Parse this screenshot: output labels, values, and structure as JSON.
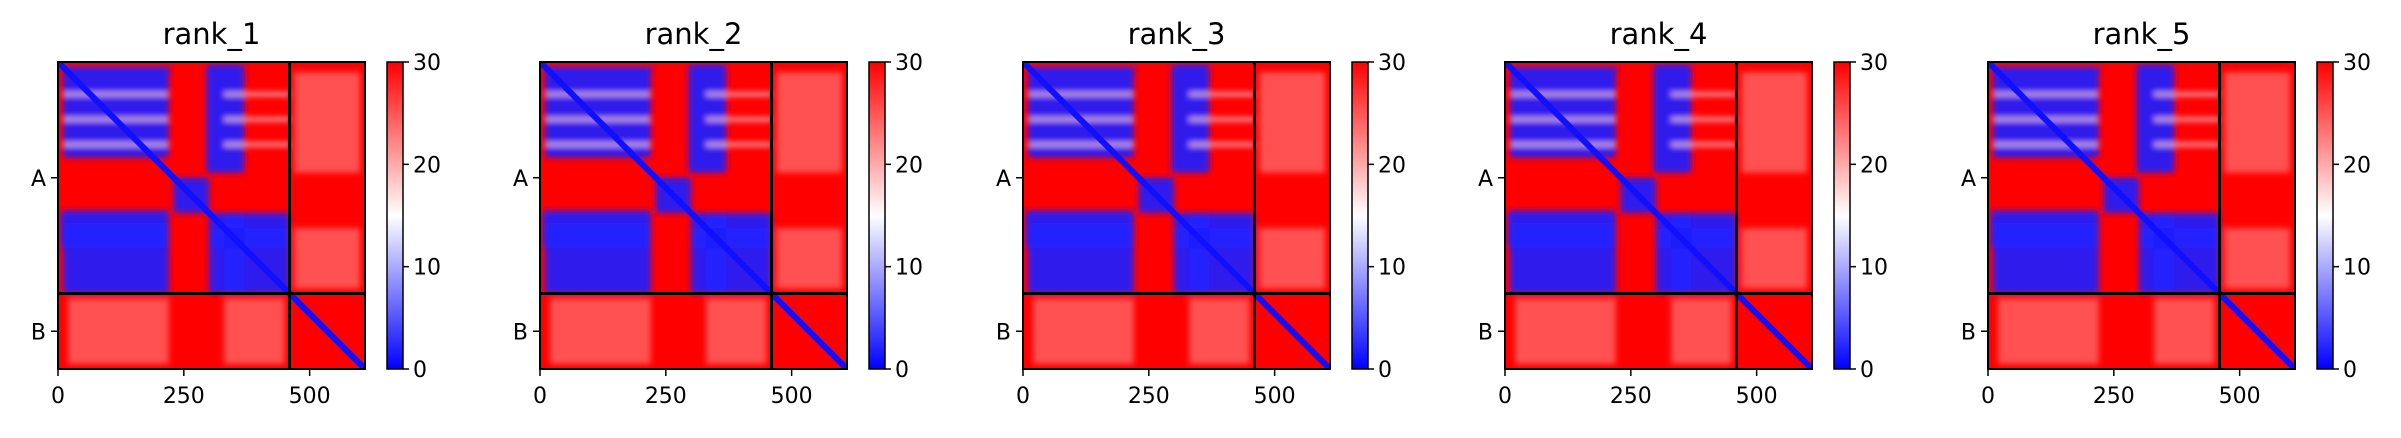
{
  "chart_data": [
    {
      "type": "heatmap",
      "title": "rank_1",
      "colormap": [
        "#0000ff",
        "#ffffff",
        "#ff0000"
      ],
      "chain_tick_labels": [
        "A",
        "B"
      ],
      "chain_boundaries": [
        460
      ],
      "xtick_labels": [
        "0",
        "250",
        "500"
      ],
      "xticks": [
        0,
        250,
        500
      ],
      "xlim": [
        0,
        610
      ],
      "colorbar": {
        "ticks": [
          "0",
          "10",
          "20",
          "30"
        ],
        "range": [
          0,
          30
        ]
      }
    },
    {
      "type": "heatmap",
      "title": "rank_2",
      "colormap": [
        "#0000ff",
        "#ffffff",
        "#ff0000"
      ],
      "chain_tick_labels": [
        "A",
        "B"
      ],
      "chain_boundaries": [
        460
      ],
      "xtick_labels": [
        "0",
        "250",
        "500"
      ],
      "xticks": [
        0,
        250,
        500
      ],
      "xlim": [
        0,
        610
      ],
      "colorbar": {
        "ticks": [
          "0",
          "10",
          "20",
          "30"
        ],
        "range": [
          0,
          30
        ]
      }
    },
    {
      "type": "heatmap",
      "title": "rank_3",
      "colormap": [
        "#0000ff",
        "#ffffff",
        "#ff0000"
      ],
      "chain_tick_labels": [
        "A",
        "B"
      ],
      "chain_boundaries": [
        460
      ],
      "xtick_labels": [
        "0",
        "250",
        "500"
      ],
      "xticks": [
        0,
        250,
        500
      ],
      "xlim": [
        0,
        610
      ],
      "colorbar": {
        "ticks": [
          "0",
          "10",
          "20",
          "30"
        ],
        "range": [
          0,
          30
        ]
      }
    },
    {
      "type": "heatmap",
      "title": "rank_4",
      "colormap": [
        "#0000ff",
        "#ffffff",
        "#ff0000"
      ],
      "chain_tick_labels": [
        "A",
        "B"
      ],
      "chain_boundaries": [
        460
      ],
      "xtick_labels": [
        "0",
        "250",
        "500"
      ],
      "xticks": [
        0,
        250,
        500
      ],
      "xlim": [
        0,
        610
      ],
      "colorbar": {
        "ticks": [
          "0",
          "10",
          "20",
          "30"
        ],
        "range": [
          0,
          30
        ]
      }
    },
    {
      "type": "heatmap",
      "title": "rank_5",
      "colormap": [
        "#0000ff",
        "#ffffff",
        "#ff0000"
      ],
      "chain_tick_labels": [
        "A",
        "B"
      ],
      "chain_boundaries": [
        460
      ],
      "xtick_labels": [
        "0",
        "250",
        "500"
      ],
      "xticks": [
        0,
        250,
        500
      ],
      "xlim": [
        0,
        610
      ],
      "colorbar": {
        "ticks": [
          "0",
          "10",
          "20",
          "30"
        ],
        "range": [
          0,
          30
        ]
      }
    }
  ]
}
